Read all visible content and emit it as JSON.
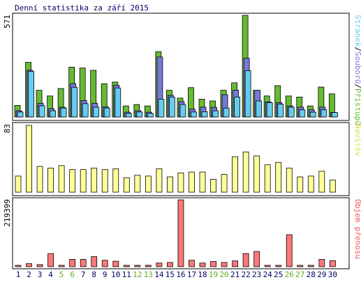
{
  "title": "Denní statistika za září 2015",
  "colors": {
    "hits": "#66bb33",
    "files": "#7777dd",
    "pages": "#66ccee",
    "visits": "#ffff99",
    "kbytes": "#ff7777",
    "weekday_label": "#000066",
    "weekend_label": "#66aa22",
    "axis": "#000000",
    "background": "#ffffff"
  },
  "chart_data": [
    {
      "type": "bar",
      "panel": "requests",
      "max_label": "571",
      "ylim": [
        0,
        571
      ],
      "legend": {
        "hits_label": "Přístupů",
        "files_label": "Souborů",
        "pages_label": "Stránek",
        "separator": "/",
        "placement": "right-vertical"
      },
      "categories": [
        "1",
        "2",
        "3",
        "4",
        "5",
        "6",
        "7",
        "8",
        "9",
        "10",
        "11",
        "12",
        "13",
        "14",
        "15",
        "16",
        "17",
        "18",
        "19",
        "20",
        "21",
        "22",
        "23",
        "24",
        "25",
        "26",
        "27",
        "28",
        "29",
        "30"
      ],
      "series": [
        {
          "name": "Přístupů",
          "values": [
            65,
            307,
            150,
            118,
            160,
            280,
            275,
            262,
            187,
            196,
            62,
            70,
            62,
            367,
            150,
            106,
            165,
            100,
            90,
            150,
            192,
            571,
            150,
            118,
            176,
            118,
            112,
            62,
            168,
            130
          ]
        },
        {
          "name": "Souborů",
          "values": [
            35,
            263,
            77,
            47,
            55,
            187,
            92,
            77,
            57,
            178,
            27,
            35,
            27,
            337,
            122,
            86,
            44,
            55,
            54,
            125,
            150,
            330,
            150,
            85,
            80,
            62,
            55,
            40,
            55,
            26
          ]
        },
        {
          "name": "Stránek",
          "values": [
            28,
            256,
            63,
            35,
            50,
            167,
            75,
            55,
            50,
            163,
            20,
            28,
            20,
            100,
            112,
            70,
            28,
            30,
            35,
            50,
            112,
            260,
            90,
            80,
            72,
            55,
            40,
            27,
            40,
            25
          ]
        }
      ]
    },
    {
      "type": "bar",
      "panel": "visits",
      "max_label": "83",
      "ylim": [
        0,
        83
      ],
      "legend": {
        "visits_label": "Návštěv",
        "placement": "right-vertical"
      },
      "categories": [
        "1",
        "2",
        "3",
        "4",
        "5",
        "6",
        "7",
        "8",
        "9",
        "10",
        "11",
        "12",
        "13",
        "14",
        "15",
        "16",
        "17",
        "18",
        "19",
        "20",
        "21",
        "22",
        "23",
        "24",
        "25",
        "26",
        "27",
        "28",
        "29",
        "30"
      ],
      "series": [
        {
          "name": "Návštěv",
          "values": [
            20,
            83,
            32,
            30,
            33,
            28,
            28,
            30,
            28,
            29,
            18,
            21,
            20,
            29,
            19,
            24,
            25,
            25,
            16,
            22,
            44,
            50,
            45,
            34,
            37,
            30,
            19,
            20,
            26,
            15
          ]
        }
      ]
    },
    {
      "type": "bar",
      "panel": "kbytes",
      "max_label": "219399",
      "ylim": [
        0,
        219399
      ],
      "legend": {
        "kbytes_label": "Objem přenosu",
        "placement": "right-vertical"
      },
      "categories": [
        "1",
        "2",
        "3",
        "4",
        "5",
        "6",
        "7",
        "8",
        "9",
        "10",
        "11",
        "12",
        "13",
        "14",
        "15",
        "16",
        "17",
        "18",
        "19",
        "20",
        "21",
        "22",
        "23",
        "24",
        "25",
        "26",
        "27",
        "28",
        "29",
        "30"
      ],
      "series": [
        {
          "name": "Objem přenosu",
          "values": [
            2000,
            10000,
            7000,
            43000,
            3000,
            24000,
            24000,
            33000,
            21000,
            18000,
            3000,
            3000,
            4000,
            12000,
            14000,
            219399,
            21000,
            12000,
            17000,
            14000,
            19000,
            43000,
            50000,
            3000,
            3000,
            105000,
            3000,
            3000,
            24000,
            20000
          ]
        }
      ]
    }
  ],
  "x_axis": {
    "labels": [
      "1",
      "2",
      "3",
      "4",
      "5",
      "6",
      "7",
      "8",
      "9",
      "10",
      "11",
      "12",
      "13",
      "14",
      "15",
      "16",
      "17",
      "18",
      "19",
      "20",
      "21",
      "22",
      "23",
      "24",
      "25",
      "26",
      "27",
      "28",
      "29",
      "30"
    ],
    "weekend_days": [
      5,
      6,
      12,
      13,
      19,
      20,
      26,
      27
    ]
  }
}
